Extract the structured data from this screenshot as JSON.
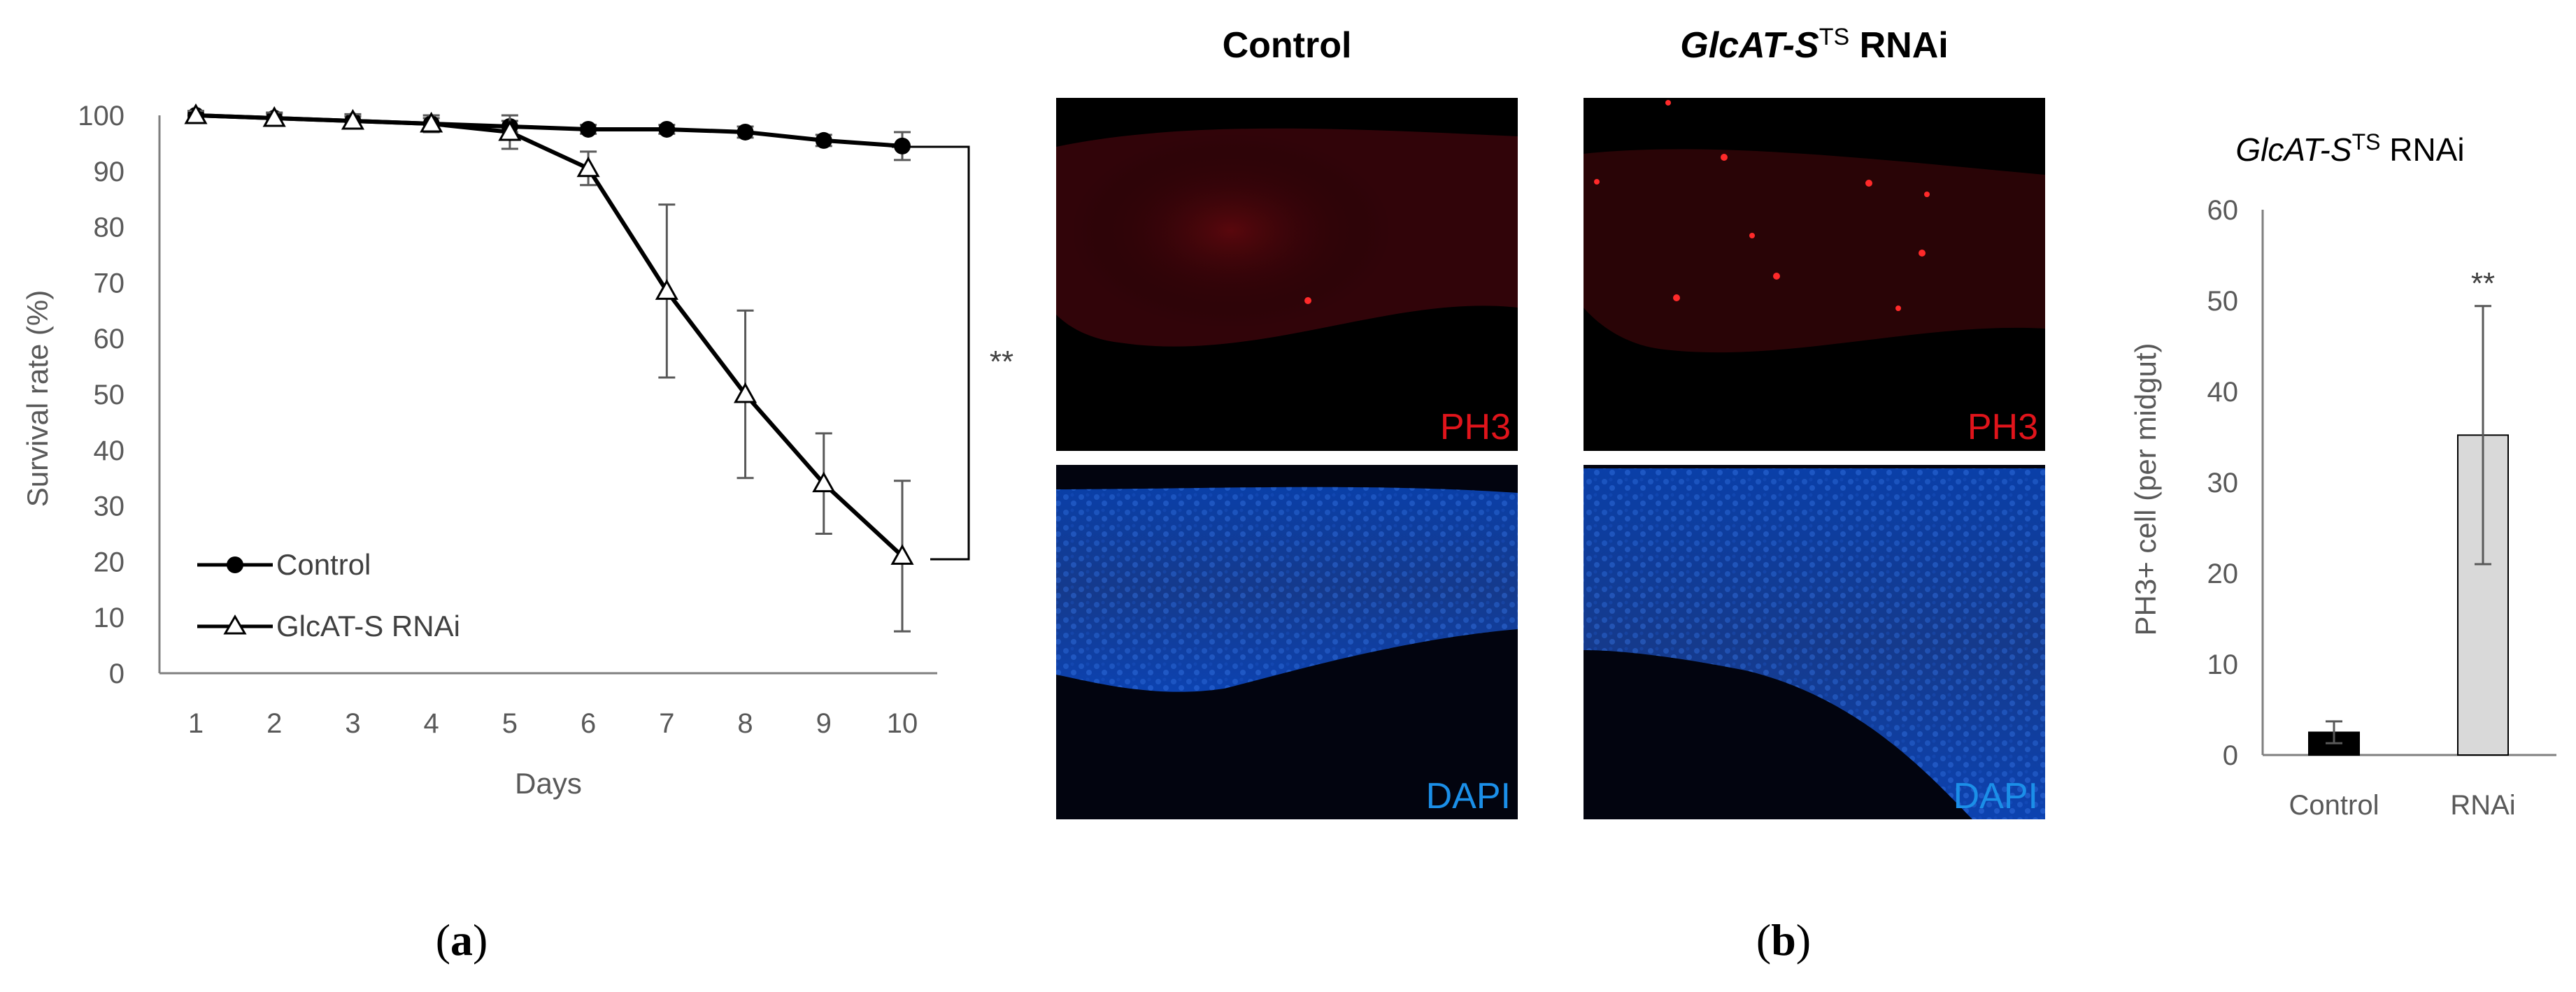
{
  "chart_data": [
    {
      "panel": "a",
      "type": "line",
      "xlabel": "Days",
      "ylabel": "Survival rate (%)",
      "x": [
        1,
        2,
        3,
        4,
        5,
        6,
        7,
        8,
        9,
        10
      ],
      "ylim": [
        0,
        100
      ],
      "yticks": [
        0,
        10,
        20,
        30,
        40,
        50,
        60,
        70,
        80,
        90,
        100
      ],
      "grid": false,
      "legend_position": "bottom-left",
      "series": [
        {
          "name": "Control",
          "marker": "filled-circle",
          "values": [
            100,
            99.5,
            99,
            98.5,
            98,
            97.5,
            97.5,
            97,
            95.5,
            94.5
          ],
          "errors": [
            0.5,
            0.8,
            0.8,
            1,
            1,
            0.8,
            0.8,
            1,
            1,
            2.5
          ]
        },
        {
          "name": "GlcAT-S RNAi",
          "marker": "open-triangle",
          "values": [
            100,
            99.5,
            99,
            98.5,
            97,
            90.5,
            68.5,
            50,
            34,
            21
          ],
          "errors": [
            0.8,
            1,
            1.2,
            1.5,
            3,
            3,
            15.5,
            15,
            9,
            13.5
          ]
        }
      ],
      "annotation": "**"
    },
    {
      "panel": "b",
      "type": "bar",
      "title_parts": {
        "gene": "GlcAT-S",
        "sup": "TS",
        "rest": " RNAi"
      },
      "categories": [
        "Control",
        "RNAi"
      ],
      "values": [
        2.5,
        35.2
      ],
      "errors": [
        1.2,
        14.2
      ],
      "bar_colors": [
        "#000000",
        "#d9d9d9"
      ],
      "ylabel": "PH3+ cell (per midgut)",
      "ylim": [
        0,
        60
      ],
      "yticks": [
        0,
        10,
        20,
        30,
        40,
        50,
        60
      ],
      "grid": false,
      "annotation": "**"
    }
  ],
  "images": {
    "col_headers": {
      "control": "Control",
      "rnai_gene": "GlcAT-S",
      "rnai_sup": "TS",
      "rnai_rest": " RNAi"
    },
    "channels": {
      "ph3": "PH3",
      "dapi": "DAPI"
    },
    "ph3_color": "#e0141b",
    "dapi_color": "#1b8fe8"
  },
  "panel_labels": {
    "a": "a",
    "b": "b"
  }
}
